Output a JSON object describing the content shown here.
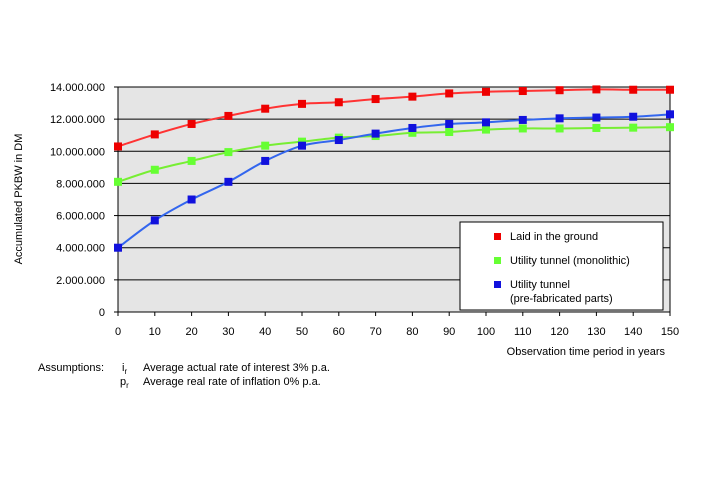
{
  "chart_data": {
    "type": "line",
    "xlabel": "Observation time period in years",
    "ylabel": "Accumulated PKBW in DM",
    "x": [
      0,
      10,
      20,
      30,
      40,
      50,
      60,
      70,
      80,
      90,
      100,
      110,
      120,
      130,
      140,
      150
    ],
    "xlim": [
      0,
      150
    ],
    "ylim": [
      0,
      14000000
    ],
    "x_ticks": [
      "0",
      "10",
      "20",
      "30",
      "40",
      "50",
      "60",
      "70",
      "80",
      "90",
      "100",
      "110",
      "120",
      "130",
      "140",
      "150"
    ],
    "y_ticks": [
      {
        "value": 0,
        "label": "0"
      },
      {
        "value": 2000000,
        "label": "2.000.000"
      },
      {
        "value": 4000000,
        "label": "4.000.000"
      },
      {
        "value": 6000000,
        "label": "6.000.000"
      },
      {
        "value": 8000000,
        "label": "8.000.000"
      },
      {
        "value": 10000000,
        "label": "10.000.000"
      },
      {
        "value": 12000000,
        "label": "12.000.000"
      },
      {
        "value": 14000000,
        "label": "14.000.000"
      }
    ],
    "grid": "horizontal",
    "background": "#e5e5e5",
    "legend_position": "bottom-right",
    "series": [
      {
        "name": "Laid in the ground",
        "line_color": "#ff3333",
        "marker_color": "#ee0000",
        "values": [
          10300000,
          11050000,
          11700000,
          12200000,
          12650000,
          12950000,
          13050000,
          13250000,
          13400000,
          13600000,
          13700000,
          13750000,
          13800000,
          13850000,
          13830000,
          13830000
        ]
      },
      {
        "name": "Utility tunnel (monolithic)",
        "line_color": "#77ee33",
        "marker_color": "#66ff33",
        "values": [
          8100000,
          8850000,
          9400000,
          9950000,
          10350000,
          10600000,
          10850000,
          10950000,
          11150000,
          11200000,
          11350000,
          11420000,
          11420000,
          11450000,
          11470000,
          11500000
        ]
      },
      {
        "name_lines": [
          "Utility tunnel",
          "(pre-fabricated parts)"
        ],
        "line_color": "#3366ee",
        "marker_color": "#1111dd",
        "values": [
          4000000,
          5700000,
          7000000,
          8100000,
          9400000,
          10350000,
          10700000,
          11100000,
          11450000,
          11700000,
          11800000,
          11950000,
          12050000,
          12100000,
          12150000,
          12300000
        ]
      }
    ]
  },
  "assumptions": {
    "label": "Assumptions:",
    "rows": [
      {
        "symbol": "i",
        "sub": "r",
        "text": "Average actual rate of interest 3% p.a."
      },
      {
        "symbol": "p",
        "sub": "r",
        "text": "Average real rate of inflation 0% p.a."
      }
    ]
  }
}
